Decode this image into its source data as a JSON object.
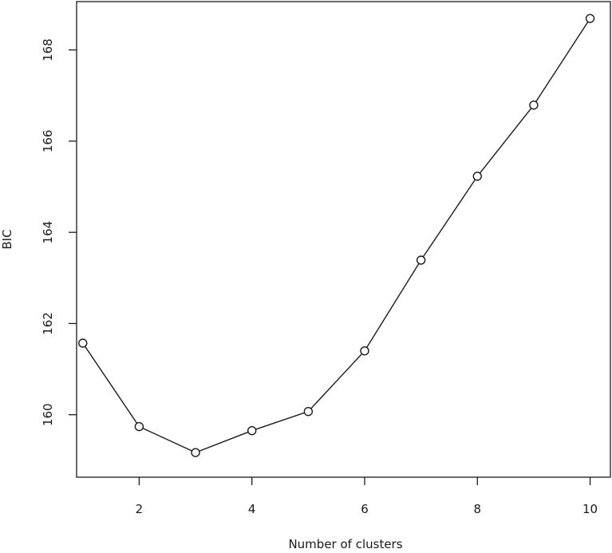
{
  "chart_data": {
    "type": "line",
    "title": "",
    "xlabel": "Number of clusters",
    "ylabel": "BIC",
    "x": [
      1,
      2,
      3,
      4,
      5,
      6,
      7,
      8,
      9,
      10
    ],
    "y": [
      161.57,
      159.74,
      159.17,
      159.65,
      160.07,
      161.4,
      163.39,
      165.23,
      166.79,
      168.69
    ],
    "xlim": [
      0.89,
      10.36
    ],
    "ylim": [
      158.63,
      169.06
    ],
    "xticks": [
      2,
      4,
      6,
      8,
      10
    ],
    "yticks": [
      160,
      162,
      164,
      166,
      168
    ],
    "xtick_labels": [
      "2",
      "4",
      "6",
      "8",
      "10"
    ],
    "ytick_labels": [
      "160",
      "162",
      "164",
      "166",
      "168"
    ],
    "marker": "open-circle",
    "grid": false,
    "legend": "none",
    "line_color": "#1a1a1a"
  }
}
